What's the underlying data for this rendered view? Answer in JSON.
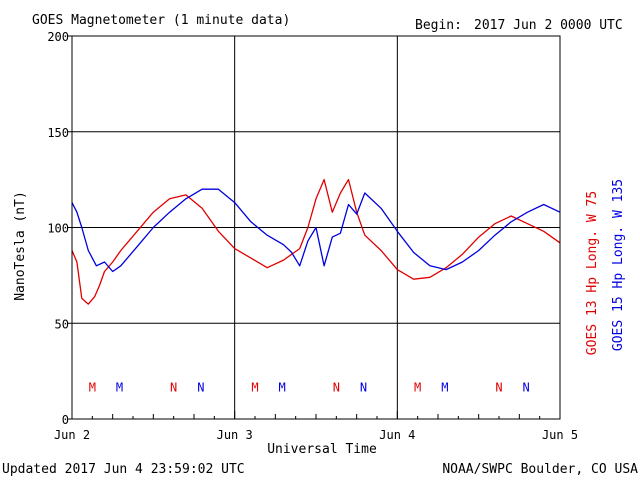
{
  "header": {
    "title": "GOES Magnetometer (1 minute data)",
    "begin_label": "Begin:",
    "begin_value": "2017 Jun 2 0000 UTC"
  },
  "footer": {
    "updated": "Updated 2017 Jun  4 23:59:02 UTC",
    "credit": "NOAA/SWPC Boulder, CO USA"
  },
  "colors": {
    "red": "#e00000",
    "blue": "#0000e0",
    "grid": "#000000"
  },
  "chart_data": {
    "type": "line",
    "xlabel": "Universal Time",
    "ylabel": "NanoTesla (nT)",
    "xlim": [
      0,
      3
    ],
    "ylim": [
      0,
      200
    ],
    "y_ticks": [
      0,
      50,
      100,
      150,
      200
    ],
    "x_tick_labels": [
      "Jun 2",
      "Jun 3",
      "Jun 4",
      "Jun 5"
    ],
    "grid": true,
    "legend_position": "right-vertical",
    "series": [
      {
        "name": "GOES 13 Hp  Long. W 75",
        "color": "#e00000",
        "x": [
          0,
          0.03,
          0.06,
          0.1,
          0.14,
          0.17,
          0.2,
          0.25,
          0.3,
          0.4,
          0.5,
          0.6,
          0.7,
          0.8,
          0.9,
          1.0,
          1.1,
          1.2,
          1.3,
          1.4,
          1.45,
          1.5,
          1.55,
          1.6,
          1.65,
          1.7,
          1.75,
          1.8,
          1.9,
          2.0,
          2.1,
          2.2,
          2.3,
          2.4,
          2.5,
          2.6,
          2.7,
          2.8,
          2.9,
          3.0
        ],
        "y": [
          88,
          82,
          63,
          60,
          64,
          70,
          77,
          82,
          88,
          98,
          108,
          115,
          117,
          110,
          98,
          89,
          84,
          79,
          83,
          89,
          100,
          115,
          125,
          108,
          118,
          125,
          108,
          96,
          88,
          78,
          73,
          74,
          79,
          86,
          95,
          102,
          106,
          102,
          98,
          92
        ]
      },
      {
        "name": "GOES 15 Hp  Long. W 135",
        "color": "#0000e0",
        "x": [
          0,
          0.03,
          0.06,
          0.1,
          0.15,
          0.2,
          0.25,
          0.3,
          0.4,
          0.5,
          0.6,
          0.7,
          0.8,
          0.9,
          1.0,
          1.1,
          1.2,
          1.3,
          1.35,
          1.4,
          1.45,
          1.5,
          1.55,
          1.6,
          1.65,
          1.7,
          1.75,
          1.8,
          1.9,
          2.0,
          2.1,
          2.2,
          2.3,
          2.4,
          2.5,
          2.6,
          2.7,
          2.8,
          2.9,
          3.0
        ],
        "y": [
          113,
          108,
          100,
          88,
          80,
          82,
          77,
          80,
          90,
          100,
          108,
          115,
          120,
          120,
          113,
          103,
          96,
          91,
          87,
          80,
          93,
          100,
          80,
          95,
          97,
          112,
          107,
          118,
          110,
          98,
          87,
          80,
          78,
          82,
          88,
          96,
          103,
          108,
          112,
          108
        ]
      }
    ],
    "markers": [
      {
        "label": "M",
        "x": 0.125,
        "color": "#e00000"
      },
      {
        "label": "M",
        "x": 0.292,
        "color": "#0000e0"
      },
      {
        "label": "N",
        "x": 0.625,
        "color": "#e00000"
      },
      {
        "label": "N",
        "x": 0.792,
        "color": "#0000e0"
      },
      {
        "label": "M",
        "x": 1.125,
        "color": "#e00000"
      },
      {
        "label": "M",
        "x": 1.292,
        "color": "#0000e0"
      },
      {
        "label": "N",
        "x": 1.625,
        "color": "#e00000"
      },
      {
        "label": "N",
        "x": 1.792,
        "color": "#0000e0"
      },
      {
        "label": "M",
        "x": 2.125,
        "color": "#e00000"
      },
      {
        "label": "M",
        "x": 2.292,
        "color": "#0000e0"
      },
      {
        "label": "N",
        "x": 2.625,
        "color": "#e00000"
      },
      {
        "label": "N",
        "x": 2.792,
        "color": "#0000e0"
      }
    ],
    "marker_level": 17
  }
}
